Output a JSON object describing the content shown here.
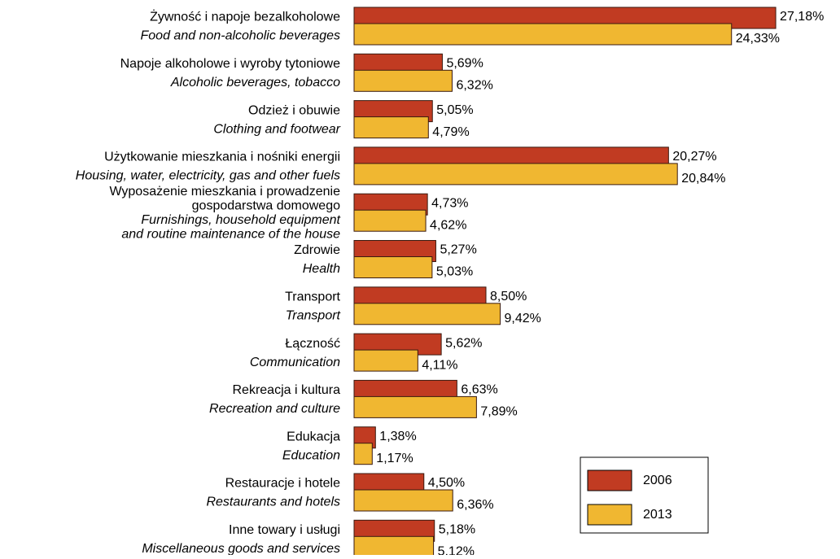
{
  "chart_data": {
    "type": "bar",
    "orientation": "horizontal",
    "categories": [
      {
        "pl": [
          "Żywność i napoje bezalkoholowe"
        ],
        "en": [
          "Food and non-alcoholic beverages"
        ]
      },
      {
        "pl": [
          "Napoje alkoholowe i wyroby tytoniowe"
        ],
        "en": [
          "Alcoholic beverages, tobacco"
        ]
      },
      {
        "pl": [
          "Odzież i obuwie"
        ],
        "en": [
          "Clothing and footwear"
        ]
      },
      {
        "pl": [
          "Użytkowanie mieszkania i nośniki energii"
        ],
        "en": [
          "Housing, water, electricity, gas and other fuels"
        ]
      },
      {
        "pl": [
          "Wyposażenie mieszkania i prowadzenie",
          "gospodarstwa domowego"
        ],
        "en": [
          "Furnishings, household equipment",
          "and routine maintenance of the house"
        ]
      },
      {
        "pl": [
          "Zdrowie"
        ],
        "en": [
          "Health"
        ]
      },
      {
        "pl": [
          "Transport"
        ],
        "en": [
          "Transport"
        ]
      },
      {
        "pl": [
          "Łączność"
        ],
        "en": [
          "Communication"
        ]
      },
      {
        "pl": [
          "Rekreacja i kultura"
        ],
        "en": [
          "Recreation and culture"
        ]
      },
      {
        "pl": [
          "Edukacja"
        ],
        "en": [
          "Education"
        ]
      },
      {
        "pl": [
          "Restauracje i hotele"
        ],
        "en": [
          "Restaurants and hotels"
        ]
      },
      {
        "pl": [
          "Inne towary i usługi"
        ],
        "en": [
          "Miscellaneous goods and services"
        ]
      }
    ],
    "series": [
      {
        "name": "2006",
        "color": "#c13b22",
        "values": [
          27.18,
          5.69,
          5.05,
          20.27,
          4.73,
          5.27,
          8.5,
          5.62,
          6.63,
          1.38,
          4.5,
          5.18
        ],
        "value_labels": [
          "27,18%",
          "5,69%",
          "5,05%",
          "20,27%",
          "4,73%",
          "5,27%",
          "8,50%",
          "5,62%",
          "6,63%",
          "1,38%",
          "4,50%",
          "5,18%"
        ]
      },
      {
        "name": "2013",
        "color": "#f0b731",
        "values": [
          24.33,
          6.32,
          4.79,
          20.84,
          4.62,
          5.03,
          9.42,
          4.11,
          7.89,
          1.17,
          6.36,
          5.12
        ],
        "value_labels": [
          "24,33%",
          "6,32%",
          "4,79%",
          "20,84%",
          "4,62%",
          "5,03%",
          "9,42%",
          "4,11%",
          "7,89%",
          "1,17%",
          "6,36%",
          "5,12%"
        ]
      }
    ],
    "legend": "bottom-right"
  }
}
